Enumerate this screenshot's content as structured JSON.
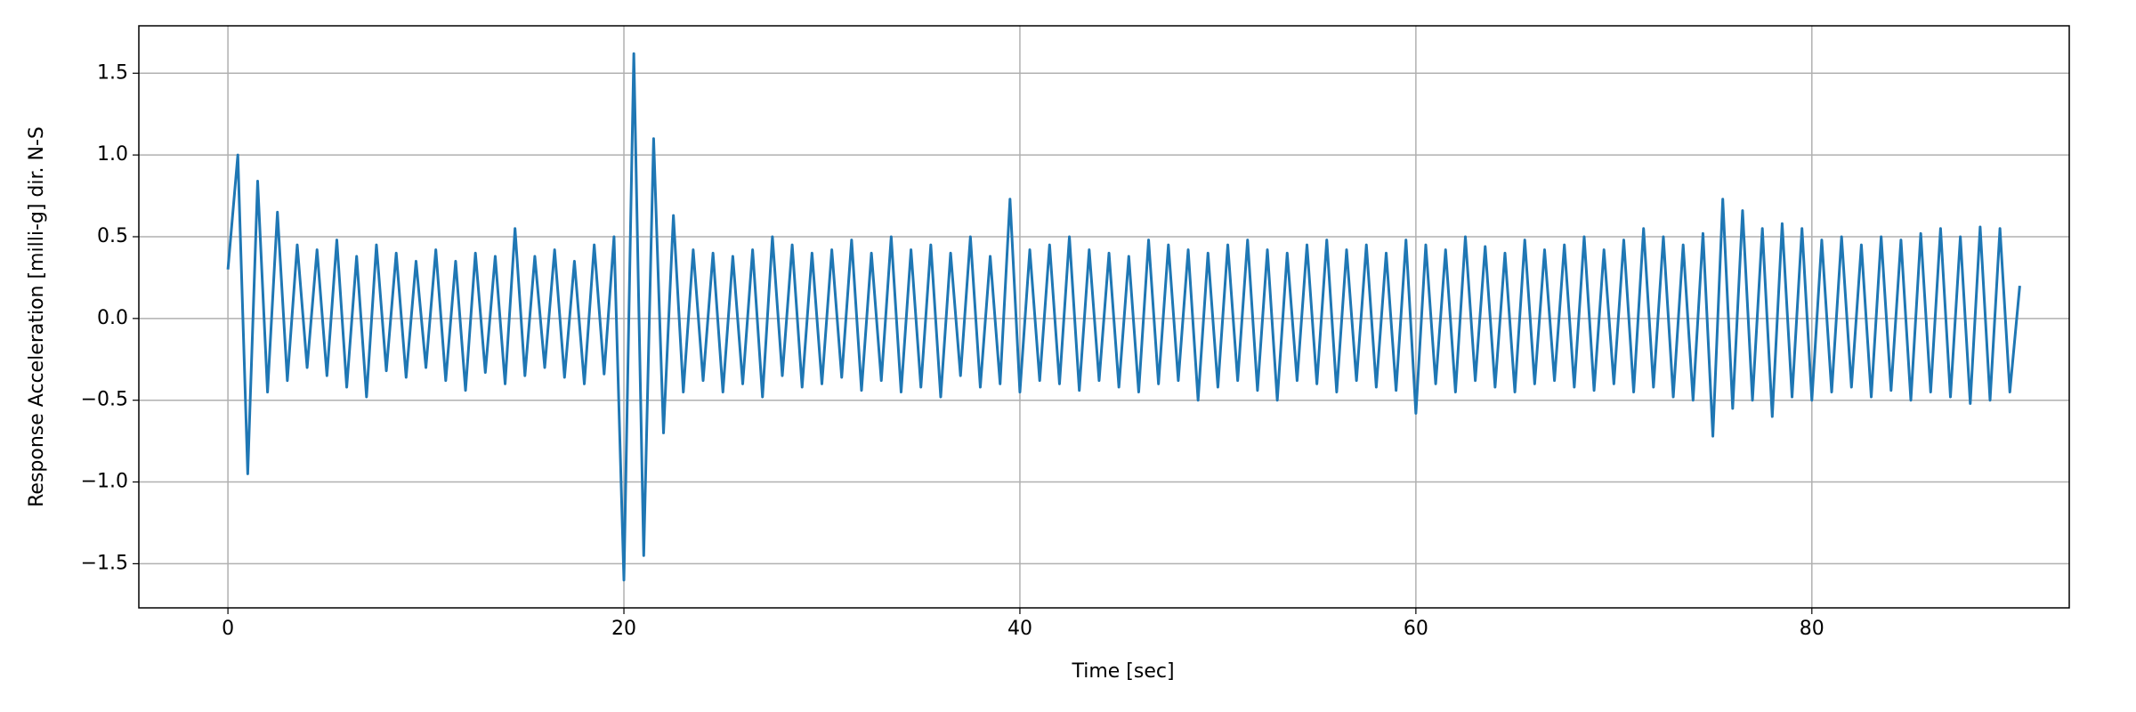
{
  "chart_data": {
    "type": "line",
    "xlabel": "Time [sec]",
    "ylabel": "Response Acceleration [milli-g] dir. N-S",
    "xlim": [
      -4.5,
      93
    ],
    "ylim": [
      -1.77,
      1.79
    ],
    "xticks": [
      0,
      20,
      40,
      60,
      80
    ],
    "yticks": [
      {
        "value": -1.5,
        "label": "−1.5"
      },
      {
        "value": -1.0,
        "label": "−1.0"
      },
      {
        "value": -0.5,
        "label": "−0.5"
      },
      {
        "value": 0.0,
        "label": "0.0"
      },
      0.5,
      {
        "value": 1.0,
        "label": "1.0"
      },
      1.5
    ],
    "grid": true,
    "series": [
      {
        "color": "#1f77b4",
        "x": [
          0,
          0.5,
          1,
          1.5,
          2,
          2.5,
          3,
          3.5,
          4,
          4.5,
          5,
          5.5,
          6,
          6.5,
          7,
          7.5,
          8,
          8.5,
          9,
          9.5,
          10,
          10.5,
          11,
          11.5,
          12,
          12.5,
          13,
          13.5,
          14,
          14.5,
          15,
          15.5,
          16,
          16.5,
          17,
          17.5,
          18,
          18.5,
          19,
          19.5,
          20,
          20.5,
          21,
          21.5,
          22,
          22.5,
          23,
          23.5,
          24,
          24.5,
          25,
          25.5,
          26,
          26.5,
          27,
          27.5,
          28,
          28.5,
          29,
          29.5,
          30,
          30.5,
          31,
          31.5,
          32,
          32.5,
          33,
          33.5,
          34,
          34.5,
          35,
          35.5,
          36,
          36.5,
          37,
          37.5,
          38,
          38.5,
          39,
          39.5,
          40,
          40.5,
          41,
          41.5,
          42,
          42.5,
          43,
          43.5,
          44,
          44.5,
          45,
          45.5,
          46,
          46.5,
          47,
          47.5,
          48,
          48.5,
          49,
          49.5,
          50,
          50.5,
          51,
          51.5,
          52,
          52.5,
          53,
          53.5,
          54,
          54.5,
          55,
          55.5,
          56,
          56.5,
          57,
          57.5,
          58,
          58.5,
          59,
          59.5,
          60,
          60.5,
          61,
          61.5,
          62,
          62.5,
          63,
          63.5,
          64,
          64.5,
          65,
          65.5,
          66,
          66.5,
          67,
          67.5,
          68,
          68.5,
          69,
          69.5,
          70,
          70.5,
          71,
          71.5,
          72,
          72.5,
          73,
          73.5,
          74,
          74.5,
          75,
          75.5,
          76,
          76.5,
          77,
          77.5,
          78,
          78.5,
          79,
          79.5,
          80,
          80.5,
          81,
          81.5,
          82,
          82.5,
          83,
          83.5,
          84,
          84.5,
          85,
          85.5,
          86,
          86.5,
          87,
          87.5,
          88,
          88.5,
          89,
          89.5,
          90,
          90.5
        ],
        "values": [
          0.3,
          1.0,
          -0.95,
          0.84,
          -0.45,
          0.65,
          -0.38,
          0.45,
          -0.3,
          0.42,
          -0.35,
          0.48,
          -0.42,
          0.38,
          -0.48,
          0.45,
          -0.32,
          0.4,
          -0.36,
          0.35,
          -0.3,
          0.42,
          -0.38,
          0.35,
          -0.44,
          0.4,
          -0.33,
          0.38,
          -0.4,
          0.55,
          -0.35,
          0.38,
          -0.3,
          0.42,
          -0.36,
          0.35,
          -0.4,
          0.45,
          -0.34,
          0.5,
          -1.6,
          1.62,
          -1.45,
          1.1,
          -0.7,
          0.63,
          -0.45,
          0.42,
          -0.38,
          0.4,
          -0.45,
          0.38,
          -0.4,
          0.42,
          -0.48,
          0.5,
          -0.35,
          0.45,
          -0.42,
          0.4,
          -0.4,
          0.42,
          -0.36,
          0.48,
          -0.44,
          0.4,
          -0.38,
          0.5,
          -0.45,
          0.42,
          -0.42,
          0.45,
          -0.48,
          0.4,
          -0.35,
          0.5,
          -0.42,
          0.38,
          -0.4,
          0.73,
          -0.45,
          0.42,
          -0.38,
          0.45,
          -0.4,
          0.5,
          -0.44,
          0.42,
          -0.38,
          0.4,
          -0.42,
          0.38,
          -0.45,
          0.48,
          -0.4,
          0.45,
          -0.38,
          0.42,
          -0.5,
          0.4,
          -0.42,
          0.45,
          -0.38,
          0.48,
          -0.44,
          0.42,
          -0.5,
          0.4,
          -0.38,
          0.45,
          -0.4,
          0.48,
          -0.45,
          0.42,
          -0.38,
          0.45,
          -0.42,
          0.4,
          -0.44,
          0.48,
          -0.58,
          0.45,
          -0.4,
          0.42,
          -0.45,
          0.5,
          -0.38,
          0.44,
          -0.42,
          0.4,
          -0.45,
          0.48,
          -0.4,
          0.42,
          -0.38,
          0.45,
          -0.42,
          0.5,
          -0.44,
          0.42,
          -0.4,
          0.48,
          -0.45,
          0.55,
          -0.42,
          0.5,
          -0.48,
          0.45,
          -0.5,
          0.52,
          -0.72,
          0.73,
          -0.55,
          0.66,
          -0.5,
          0.55,
          -0.6,
          0.58,
          -0.48,
          0.55,
          -0.5,
          0.48,
          -0.45,
          0.5,
          -0.42,
          0.45,
          -0.48,
          0.5,
          -0.44,
          0.48,
          -0.5,
          0.52,
          -0.45,
          0.55,
          -0.48,
          0.5,
          -0.52,
          0.56,
          -0.5,
          0.55,
          -0.45,
          0.2
        ]
      }
    ]
  }
}
